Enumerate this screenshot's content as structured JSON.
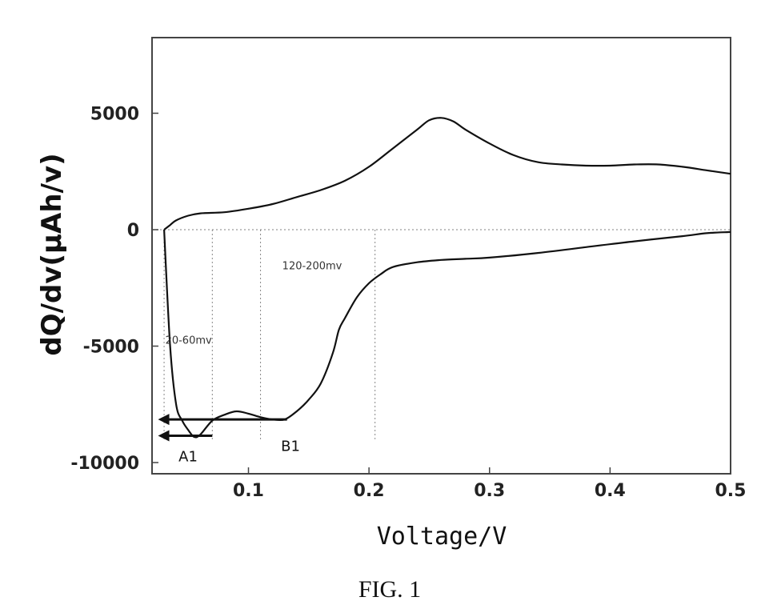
{
  "figure": {
    "caption": "FIG. 1"
  },
  "chart_data": {
    "type": "line",
    "xlabel": "Voltage/V",
    "ylabel": "dQ/dv(μAh/v)",
    "xlim": [
      0.02,
      0.5
    ],
    "ylim": [
      -10000,
      8000
    ],
    "x_ticks": [
      0.1,
      0.2,
      0.3,
      0.4,
      0.5
    ],
    "x_tick_labels": [
      "0.1",
      "0.2",
      "0.3",
      "0.4",
      "0.5"
    ],
    "y_ticks": [
      5000,
      0,
      -5000,
      -10000
    ],
    "y_tick_labels": [
      "5000",
      "0",
      "-5000",
      "-10000"
    ],
    "grid": false,
    "series": [
      {
        "x": [
          0.03,
          0.035,
          0.04,
          0.05,
          0.06,
          0.08,
          0.1,
          0.12,
          0.14,
          0.16,
          0.18,
          0.2,
          0.22,
          0.24,
          0.25,
          0.26,
          0.27,
          0.28,
          0.3,
          0.32,
          0.34,
          0.36,
          0.38,
          0.4,
          0.42,
          0.44,
          0.46,
          0.48,
          0.5
        ],
        "y": [
          0,
          200,
          400,
          600,
          700,
          750,
          900,
          1100,
          1400,
          1700,
          2100,
          2700,
          3500,
          4300,
          4700,
          4800,
          4650,
          4300,
          3700,
          3200,
          2900,
          2800,
          2750,
          2750,
          2800,
          2800,
          2700,
          2550,
          2400
        ]
      },
      {
        "x": [
          0.03,
          0.035,
          0.04,
          0.045,
          0.05,
          0.055,
          0.06,
          0.07,
          0.08,
          0.09,
          0.1,
          0.11,
          0.12,
          0.13,
          0.14,
          0.15,
          0.16,
          0.17,
          0.175,
          0.18,
          0.19,
          0.2,
          0.21,
          0.22,
          0.24,
          0.26,
          0.28,
          0.3,
          0.34,
          0.38,
          0.42,
          0.46,
          0.48,
          0.5
        ],
        "y": [
          0,
          -5000,
          -7500,
          -8200,
          -8600,
          -8900,
          -8800,
          -8200,
          -7950,
          -7800,
          -7900,
          -8050,
          -8150,
          -8150,
          -7800,
          -7300,
          -6600,
          -5300,
          -4300,
          -3800,
          -2900,
          -2300,
          -1900,
          -1600,
          -1400,
          -1300,
          -1250,
          -1200,
          -1000,
          -750,
          -500,
          -280,
          -150,
          -100
        ]
      }
    ],
    "reference_lines_x": [
      0.03,
      0.07,
      0.11,
      0.205
    ],
    "annotations": [
      {
        "text": "20-60mv",
        "x": 0.031,
        "y": -4900
      },
      {
        "text": "120-200mv",
        "x": 0.128,
        "y": -1700
      },
      {
        "text": "A1",
        "x": 0.042,
        "y": -9950
      },
      {
        "text": "B1",
        "x": 0.127,
        "y": -9500
      }
    ],
    "arrows": [
      {
        "from_x": 0.132,
        "to_x": 0.025,
        "y": -8150
      },
      {
        "from_x": 0.07,
        "to_x": 0.025,
        "y": -8850
      }
    ]
  }
}
